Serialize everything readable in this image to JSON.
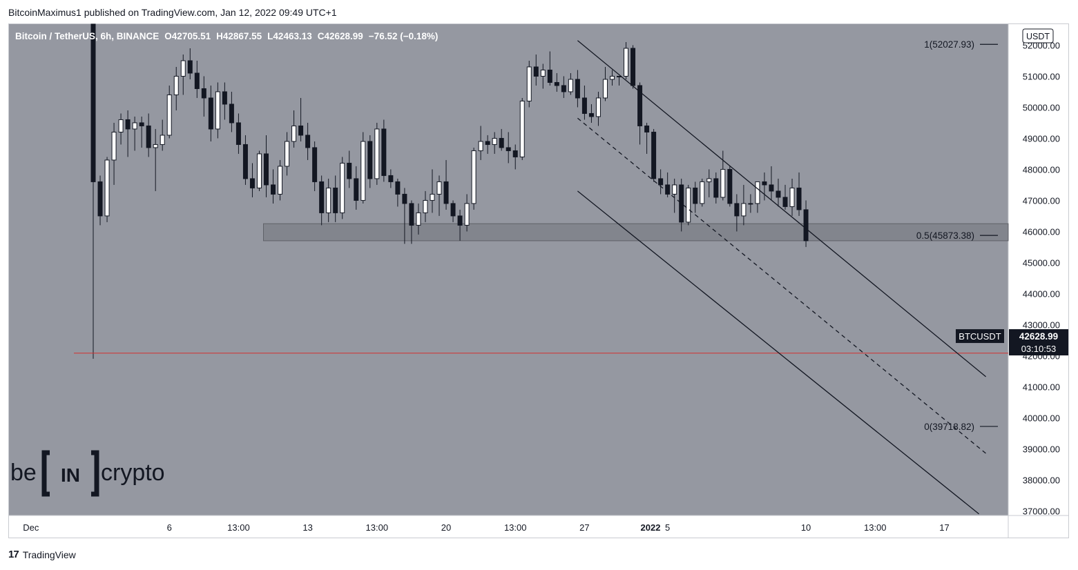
{
  "header": {
    "published_by": "BitcoinMaximus1 published on TradingView.com, Jan 12, 2022 09:49 UTC+1"
  },
  "footer": {
    "brand": "TradingView",
    "logo_glyph": "17"
  },
  "watermark": {
    "left": "be",
    "bracket": "IN",
    "right": "crypto"
  },
  "chart_data": {
    "type": "candlestick",
    "symbol_title": "Bitcoin / TetherUS, 6h, BINANCE",
    "ohlc": {
      "o_label": "O",
      "o": "42705.51",
      "h_label": "H",
      "h": "42867.55",
      "l_label": "L",
      "l": "42463.13",
      "c_label": "C",
      "c": "42628.99",
      "change": "−76.52 (−0.18%)"
    },
    "currency": "USDT",
    "ylim": [
      36850,
      52700
    ],
    "y_ticks": [
      "52000.00",
      "51000.00",
      "50000.00",
      "49000.00",
      "48000.00",
      "47000.00",
      "46000.00",
      "45000.00",
      "44000.00",
      "43000.00",
      "42000.00",
      "41000.00",
      "40000.00",
      "39000.00",
      "38000.00",
      "37000.00"
    ],
    "x_ticks": [
      {
        "label": "Dec",
        "i": -9
      },
      {
        "label": "6",
        "i": 11
      },
      {
        "label": "13:00",
        "i": 21
      },
      {
        "label": "13",
        "i": 31
      },
      {
        "label": "13:00",
        "i": 41
      },
      {
        "label": "20",
        "i": 51
      },
      {
        "label": "13:00",
        "i": 61
      },
      {
        "label": "27",
        "i": 71
      },
      {
        "label": "2022",
        "i": 85
      },
      {
        "label": "5",
        "i": 83
      },
      {
        "label": "10",
        "i": 103
      },
      {
        "label": "13:00",
        "i": 113
      },
      {
        "label": "17",
        "i": 123
      }
    ],
    "price_label": {
      "symbol": "BTCUSDT",
      "price": "42628.99",
      "countdown": "03:10:53",
      "value": 42628.99
    },
    "horizontal_line": {
      "value": 42080,
      "color": "#d32f2f"
    },
    "support_zone": {
      "from": 45700,
      "to": 46250,
      "start_i": 25
    },
    "fib_levels": [
      {
        "label": "1(52027.93)",
        "value": 52027.93
      },
      {
        "label": "0.5(45873.38)",
        "value": 45873.38
      },
      {
        "label": "0(39718.82)",
        "value": 39718.82
      }
    ],
    "channel": {
      "upper": [
        [
          70,
          52150
        ],
        [
          129,
          41320
        ]
      ],
      "lower": [
        [
          70,
          47300
        ],
        [
          128,
          36900
        ]
      ],
      "middle": [
        [
          70,
          49650
        ],
        [
          129,
          38850
        ]
      ]
    },
    "candles": [
      [
        53000,
        53000,
        41900,
        47600
      ],
      [
        47600,
        47800,
        46200,
        46500
      ],
      [
        46500,
        48400,
        46300,
        48300
      ],
      [
        48300,
        49500,
        47500,
        49200
      ],
      [
        49200,
        49800,
        48800,
        49600
      ],
      [
        49600,
        49900,
        48400,
        49300
      ],
      [
        49300,
        49700,
        48600,
        49500
      ],
      [
        49500,
        49700,
        48700,
        49400
      ],
      [
        49400,
        49800,
        48400,
        48700
      ],
      [
        48700,
        49300,
        47300,
        48800
      ],
      [
        48800,
        49600,
        48600,
        49100
      ],
      [
        49100,
        50700,
        49000,
        50400
      ],
      [
        50400,
        51300,
        49900,
        51000
      ],
      [
        51000,
        51700,
        50400,
        51500
      ],
      [
        51500,
        51900,
        50900,
        51100
      ],
      [
        51100,
        51500,
        50300,
        50600
      ],
      [
        50600,
        51000,
        49700,
        50300
      ],
      [
        50300,
        50700,
        48900,
        49300
      ],
      [
        49300,
        50800,
        49000,
        50500
      ],
      [
        50500,
        50800,
        49600,
        50100
      ],
      [
        50100,
        50500,
        49200,
        49500
      ],
      [
        49500,
        49800,
        48500,
        48800
      ],
      [
        48800,
        49100,
        47500,
        47700
      ],
      [
        47700,
        48200,
        47100,
        47400
      ],
      [
        47400,
        48600,
        47300,
        48500
      ],
      [
        48500,
        49100,
        47100,
        47500
      ],
      [
        47500,
        48000,
        46900,
        47200
      ],
      [
        47200,
        48300,
        47000,
        48100
      ],
      [
        48100,
        49200,
        47800,
        48900
      ],
      [
        48900,
        49900,
        48700,
        49400
      ],
      [
        49400,
        50300,
        48900,
        49100
      ],
      [
        49100,
        49500,
        48300,
        48700
      ],
      [
        48700,
        48900,
        47300,
        47600
      ],
      [
        47600,
        47800,
        46200,
        46600
      ],
      [
        46600,
        47700,
        46300,
        47400
      ],
      [
        47400,
        47800,
        46300,
        46600
      ],
      [
        46600,
        48400,
        46400,
        48200
      ],
      [
        48200,
        48600,
        47400,
        47700
      ],
      [
        47700,
        48100,
        46700,
        47000
      ],
      [
        47000,
        49200,
        46900,
        48900
      ],
      [
        48900,
        49100,
        47400,
        47700
      ],
      [
        47700,
        49500,
        47500,
        49300
      ],
      [
        49300,
        49600,
        47600,
        47800
      ],
      [
        47800,
        48000,
        47400,
        47600
      ],
      [
        47600,
        47700,
        46800,
        47200
      ],
      [
        47200,
        47400,
        45600,
        46900
      ],
      [
        46900,
        47000,
        45600,
        46200
      ],
      [
        46200,
        46900,
        45900,
        46600
      ],
      [
        46600,
        47300,
        46300,
        47000
      ],
      [
        47000,
        48000,
        46600,
        47200
      ],
      [
        47200,
        47800,
        46500,
        47600
      ],
      [
        47600,
        48300,
        46700,
        46900
      ],
      [
        46900,
        47000,
        46300,
        46500
      ],
      [
        46500,
        46700,
        45700,
        46200
      ],
      [
        46200,
        47200,
        46000,
        46900
      ],
      [
        46900,
        48700,
        46700,
        48600
      ],
      [
        48600,
        49400,
        48300,
        48900
      ],
      [
        48900,
        49100,
        48500,
        48800
      ],
      [
        48800,
        49200,
        48500,
        49000
      ],
      [
        49000,
        49300,
        48600,
        48700
      ],
      [
        48700,
        49200,
        48200,
        48600
      ],
      [
        48600,
        48800,
        48000,
        48400
      ],
      [
        48400,
        50300,
        48300,
        50200
      ],
      [
        50200,
        51500,
        50000,
        51300
      ],
      [
        51300,
        51700,
        50700,
        51000
      ],
      [
        51000,
        51400,
        50600,
        51200
      ],
      [
        51200,
        51800,
        50700,
        50800
      ],
      [
        50800,
        51100,
        50500,
        50700
      ],
      [
        50700,
        51000,
        50300,
        50500
      ],
      [
        50500,
        51100,
        50400,
        50900
      ],
      [
        50900,
        51200,
        50000,
        50300
      ],
      [
        50300,
        50700,
        49600,
        49800
      ],
      [
        49800,
        50100,
        49500,
        49700
      ],
      [
        49700,
        50500,
        49400,
        50300
      ],
      [
        50300,
        51300,
        50200,
        50900
      ],
      [
        50900,
        51200,
        50700,
        51000
      ],
      [
        51000,
        51000,
        50700,
        51000
      ],
      [
        51000,
        52100,
        50900,
        51900
      ],
      [
        51900,
        52000,
        50600,
        50700
      ],
      [
        50700,
        50800,
        48800,
        49400
      ],
      [
        49400,
        49500,
        48500,
        49200
      ],
      [
        49200,
        49300,
        47600,
        47700
      ],
      [
        47700,
        48000,
        47200,
        47500
      ],
      [
        47500,
        47900,
        47100,
        47200
      ],
      [
        47200,
        47700,
        46600,
        47500
      ],
      [
        47500,
        47700,
        46000,
        46300
      ],
      [
        46300,
        47500,
        46200,
        47400
      ],
      [
        47400,
        47600,
        46600,
        46900
      ],
      [
        46900,
        47700,
        46800,
        47600
      ],
      [
        47600,
        48000,
        47100,
        47700
      ],
      [
        47700,
        47900,
        46900,
        47100
      ],
      [
        47100,
        48600,
        47000,
        48000
      ],
      [
        48000,
        48100,
        46800,
        46900
      ],
      [
        46900,
        47200,
        46000,
        46500
      ],
      [
        46500,
        47500,
        46200,
        46900
      ],
      [
        46900,
        47200,
        46600,
        46900
      ],
      [
        46900,
        47600,
        46600,
        47600
      ],
      [
        47600,
        47900,
        47000,
        47500
      ],
      [
        47500,
        48100,
        47000,
        47300
      ],
      [
        47300,
        47700,
        46800,
        47100
      ],
      [
        47100,
        47500,
        46700,
        46800
      ],
      [
        46800,
        47700,
        46500,
        47400
      ],
      [
        47400,
        47900,
        46500,
        46700
      ],
      [
        46700,
        47000,
        45500,
        45700
      ]
    ]
  }
}
